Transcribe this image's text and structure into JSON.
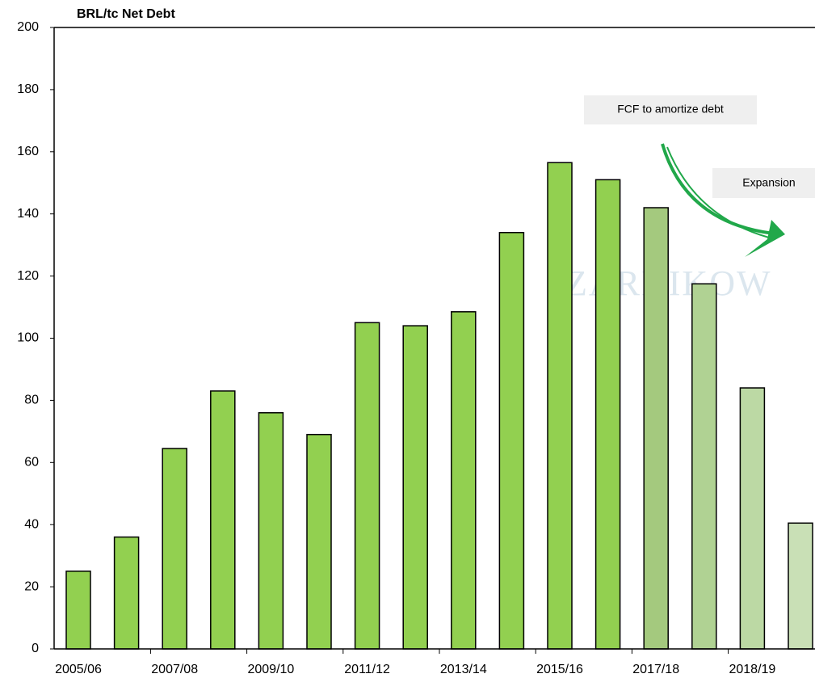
{
  "chart_data": {
    "type": "bar",
    "title": "BRL/tc Net Debt",
    "categories": [
      "2005/06",
      null,
      "2007/08",
      null,
      "2009/10",
      null,
      "2011/12",
      null,
      "2013/14",
      null,
      "2015/16",
      null,
      "2017/18",
      null,
      "2018/19",
      null
    ],
    "values": [
      25,
      36,
      64.5,
      83,
      76,
      69,
      105,
      104,
      108.5,
      134,
      156.5,
      151,
      142,
      117.5,
      84,
      40.5
    ],
    "colors": [
      "#92d050",
      "#92d050",
      "#92d050",
      "#92d050",
      "#92d050",
      "#92d050",
      "#92d050",
      "#92d050",
      "#92d050",
      "#92d050",
      "#92d050",
      "#92d050",
      "#a4c97e",
      "#b0d293",
      "#bcd9a4",
      "#c9e0b6"
    ],
    "ylim": [
      0,
      200
    ],
    "yticks": [
      0,
      20,
      40,
      60,
      80,
      100,
      120,
      140,
      160,
      180,
      200
    ],
    "annotations": [
      "FCF to amortize debt",
      "Expansion"
    ],
    "watermark": "ZARNIKOW"
  }
}
